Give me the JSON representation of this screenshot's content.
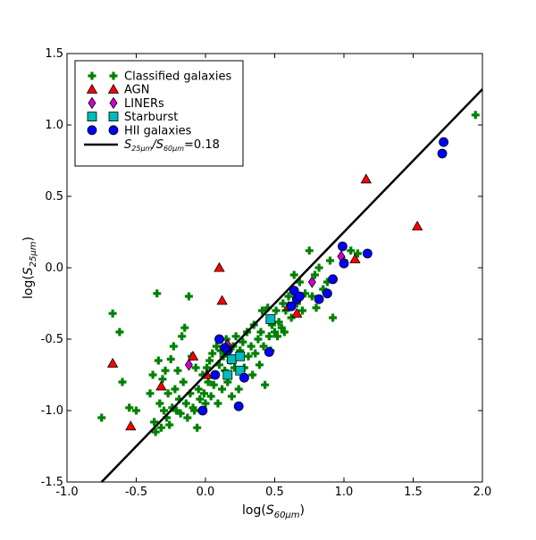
{
  "chart_data": {
    "type": "scatter",
    "title": "",
    "xlabel": "log(S60μm)",
    "xlabel_main": "log(",
    "xlabel_sub": "60μm",
    "xlabel_close": ")",
    "ylabel": "log(S25μm)",
    "ylabel_main": "log(",
    "ylabel_sub": "25μm",
    "ylabel_close": ")",
    "xlim": [
      -1.0,
      2.0
    ],
    "ylim": [
      -1.5,
      1.5
    ],
    "x_ticks": [
      -1.0,
      -0.5,
      0.0,
      0.5,
      1.0,
      1.5,
      2.0
    ],
    "y_ticks": [
      -1.5,
      -1.0,
      -0.5,
      0.0,
      0.5,
      1.0,
      1.5
    ],
    "x_tick_labels": [
      "-1.0",
      "-0.5",
      "0.0",
      "0.5",
      "1.0",
      "1.5",
      "2.0"
    ],
    "y_tick_labels": [
      "-1.5",
      "-1.0",
      "-0.5",
      "0.0",
      "0.5",
      "1.0",
      "1.5"
    ],
    "grid": false,
    "legend_position": "top-left",
    "series": [
      {
        "name": "Classified galaxies",
        "marker": "plus",
        "color": "#008000",
        "points": [
          [
            -0.75,
            -1.05
          ],
          [
            -0.67,
            -0.32
          ],
          [
            -0.62,
            -0.45
          ],
          [
            -0.6,
            -0.8
          ],
          [
            -0.55,
            -0.98
          ],
          [
            -0.5,
            -1.0
          ],
          [
            -0.4,
            -0.88
          ],
          [
            -0.38,
            -0.75
          ],
          [
            -0.37,
            -1.08
          ],
          [
            -0.36,
            -1.15
          ],
          [
            -0.35,
            -0.18
          ],
          [
            -0.34,
            -0.65
          ],
          [
            -0.33,
            -0.95
          ],
          [
            -0.32,
            -1.12
          ],
          [
            -0.31,
            -0.78
          ],
          [
            -0.3,
            -1.0
          ],
          [
            -0.29,
            -0.72
          ],
          [
            -0.28,
            -1.05
          ],
          [
            -0.27,
            -0.88
          ],
          [
            -0.26,
            -1.1
          ],
          [
            -0.25,
            -0.64
          ],
          [
            -0.24,
            -0.98
          ],
          [
            -0.23,
            -0.55
          ],
          [
            -0.22,
            -0.85
          ],
          [
            -0.21,
            -1.0
          ],
          [
            -0.2,
            -0.72
          ],
          [
            -0.19,
            -0.92
          ],
          [
            -0.18,
            -1.02
          ],
          [
            -0.17,
            -0.48
          ],
          [
            -0.16,
            -0.8
          ],
          [
            -0.15,
            -0.42
          ],
          [
            -0.14,
            -0.95
          ],
          [
            -0.13,
            -1.05
          ],
          [
            -0.12,
            -0.2
          ],
          [
            -0.11,
            -0.88
          ],
          [
            -0.1,
            -0.62
          ],
          [
            -0.09,
            -0.98
          ],
          [
            -0.08,
            -1.0
          ],
          [
            -0.07,
            -0.7
          ],
          [
            -0.06,
            -1.12
          ],
          [
            -0.05,
            -0.85
          ],
          [
            -0.04,
            -0.92
          ],
          [
            -0.03,
            -1.0
          ],
          [
            -0.02,
            -0.75
          ],
          [
            -0.01,
            -0.88
          ],
          [
            0.0,
            -0.95
          ],
          [
            0.01,
            -0.7
          ],
          [
            0.02,
            -0.8
          ],
          [
            0.03,
            -0.65
          ],
          [
            0.04,
            -0.9
          ],
          [
            0.05,
            -0.6
          ],
          [
            0.06,
            -0.82
          ],
          [
            0.07,
            -0.75
          ],
          [
            0.08,
            -0.55
          ],
          [
            0.09,
            -0.95
          ],
          [
            0.1,
            -0.68
          ],
          [
            0.11,
            -0.58
          ],
          [
            0.12,
            -0.85
          ],
          [
            0.13,
            -0.62
          ],
          [
            0.14,
            -0.72
          ],
          [
            0.15,
            -0.5
          ],
          [
            0.16,
            -0.8
          ],
          [
            0.17,
            -0.58
          ],
          [
            0.18,
            -0.65
          ],
          [
            0.19,
            -0.9
          ],
          [
            0.2,
            -0.55
          ],
          [
            0.21,
            -0.7
          ],
          [
            0.22,
            -0.48
          ],
          [
            0.23,
            -0.62
          ],
          [
            0.24,
            -0.85
          ],
          [
            0.25,
            -0.58
          ],
          [
            0.27,
            -0.52
          ],
          [
            0.28,
            -0.7
          ],
          [
            0.3,
            -0.45
          ],
          [
            0.31,
            -0.62
          ],
          [
            0.33,
            -0.55
          ],
          [
            0.34,
            -0.75
          ],
          [
            0.35,
            -0.4
          ],
          [
            0.36,
            -0.6
          ],
          [
            0.38,
            -0.5
          ],
          [
            0.39,
            -0.68
          ],
          [
            0.4,
            -0.45
          ],
          [
            0.41,
            -0.3
          ],
          [
            0.42,
            -0.55
          ],
          [
            0.43,
            -0.82
          ],
          [
            0.45,
            -0.28
          ],
          [
            0.46,
            -0.48
          ],
          [
            0.47,
            -0.58
          ],
          [
            0.48,
            -0.4
          ],
          [
            0.5,
            -0.45
          ],
          [
            0.51,
            -0.3
          ],
          [
            0.52,
            -0.48
          ],
          [
            0.53,
            -0.38
          ],
          [
            0.55,
            -0.42
          ],
          [
            0.56,
            -0.25
          ],
          [
            0.57,
            -0.45
          ],
          [
            0.58,
            -0.3
          ],
          [
            0.6,
            -0.2
          ],
          [
            0.62,
            -0.35
          ],
          [
            0.64,
            -0.05
          ],
          [
            0.66,
            -0.25
          ],
          [
            0.68,
            -0.1
          ],
          [
            0.7,
            -0.3
          ],
          [
            0.72,
            -0.18
          ],
          [
            0.75,
            0.12
          ],
          [
            0.77,
            -0.2
          ],
          [
            0.79,
            -0.05
          ],
          [
            0.8,
            -0.28
          ],
          [
            0.82,
            0.0
          ],
          [
            0.85,
            -0.15
          ],
          [
            0.88,
            -0.1
          ],
          [
            0.9,
            0.05
          ],
          [
            0.92,
            -0.35
          ],
          [
            1.0,
            0.05
          ],
          [
            1.05,
            0.12
          ],
          [
            1.1,
            0.1
          ],
          [
            1.95,
            1.07
          ]
        ]
      },
      {
        "name": "AGN",
        "marker": "triangle",
        "color": "#ff0000",
        "points": [
          [
            -0.67,
            -0.67
          ],
          [
            -0.54,
            -1.11
          ],
          [
            -0.32,
            -0.83
          ],
          [
            -0.09,
            -0.62
          ],
          [
            0.01,
            -0.75
          ],
          [
            0.1,
            0.0
          ],
          [
            0.12,
            -0.23
          ],
          [
            0.6,
            -0.27
          ],
          [
            0.66,
            -0.32
          ],
          [
            1.08,
            0.06
          ],
          [
            1.16,
            0.62
          ],
          [
            1.53,
            0.29
          ]
        ]
      },
      {
        "name": "LINERs",
        "marker": "diamond",
        "color": "#d000d0",
        "points": [
          [
            -0.12,
            -0.68
          ],
          [
            0.16,
            -0.54
          ],
          [
            0.77,
            -0.1
          ],
          [
            0.98,
            0.08
          ]
        ]
      },
      {
        "name": "Starburst",
        "marker": "square",
        "color": "#00bbbb",
        "points": [
          [
            0.16,
            -0.75
          ],
          [
            0.19,
            -0.64
          ],
          [
            0.25,
            -0.62
          ],
          [
            0.25,
            -0.72
          ],
          [
            0.47,
            -0.36
          ]
        ]
      },
      {
        "name": "HII galaxies",
        "marker": "circle",
        "color": "#0000ff",
        "points": [
          [
            -0.02,
            -1.0
          ],
          [
            0.07,
            -0.75
          ],
          [
            0.1,
            -0.5
          ],
          [
            0.14,
            -0.56
          ],
          [
            0.16,
            -0.58
          ],
          [
            0.24,
            -0.97
          ],
          [
            0.28,
            -0.77
          ],
          [
            0.46,
            -0.59
          ],
          [
            0.62,
            -0.27
          ],
          [
            0.64,
            -0.16
          ],
          [
            0.66,
            -0.22
          ],
          [
            0.68,
            -0.2
          ],
          [
            0.82,
            -0.22
          ],
          [
            0.88,
            -0.18
          ],
          [
            0.92,
            -0.08
          ],
          [
            0.99,
            0.15
          ],
          [
            1.0,
            0.03
          ],
          [
            1.17,
            0.1
          ],
          [
            1.71,
            0.8
          ],
          [
            1.72,
            0.88
          ]
        ]
      }
    ],
    "line": {
      "label_main": "S",
      "label_sub1": "25μm",
      "label_slash": "/S",
      "label_sub2": "60μm",
      "label_value": "=0.18",
      "color": "#000000",
      "x": [
        -0.75,
        2.0
      ],
      "y": [
        -1.5,
        1.25
      ]
    }
  }
}
